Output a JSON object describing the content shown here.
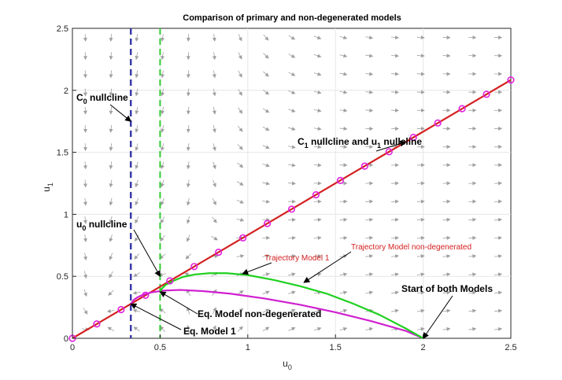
{
  "chart_data": {
    "type": "line",
    "title": "Comparison of primary and non-degenerated models",
    "xlabel": "u",
    "xlabel_sub": "0",
    "ylabel": "u",
    "ylabel_sub": "1",
    "xlim": [
      0,
      2.5
    ],
    "ylim": [
      0,
      2.5
    ],
    "xticks": [
      "0",
      "0.5",
      "1",
      "1.5",
      "2",
      "2.5"
    ],
    "yticks": [
      "0",
      "0.5",
      "1",
      "1.5",
      "2",
      "2.5"
    ],
    "grid": true,
    "nullclines": {
      "c0_x": 0.333,
      "u0_x": 0.5,
      "diagonal_slope": 0.8333
    },
    "series": [
      {
        "name": "C1 nullcline and u1 nullcline",
        "color": "#d42020",
        "marker_color": "#e020e0",
        "x": [
          0,
          0.1389,
          0.2778,
          0.4167,
          0.5556,
          0.6944,
          0.8333,
          0.9722,
          1.1111,
          1.25,
          1.3889,
          1.5278,
          1.6667,
          1.8056,
          1.9444,
          2.0833,
          2.2222,
          2.3611,
          2.5
        ],
        "y": [
          0,
          0.1157,
          0.2315,
          0.3472,
          0.463,
          0.5787,
          0.6944,
          0.8102,
          0.9259,
          1.0417,
          1.1574,
          1.2731,
          1.3889,
          1.5046,
          1.6204,
          1.7361,
          1.8519,
          1.9676,
          2.0833
        ]
      },
      {
        "name": "Trajectory Model 1",
        "color": "#d020d0",
        "x": [
          2.0,
          1.9,
          1.7,
          1.5,
          1.3,
          1.1,
          0.9,
          0.75,
          0.62,
          0.52,
          0.45,
          0.4,
          0.37,
          0.35,
          0.34,
          0.333
        ],
        "y": [
          0.0,
          0.06,
          0.14,
          0.21,
          0.27,
          0.32,
          0.36,
          0.38,
          0.39,
          0.385,
          0.37,
          0.35,
          0.33,
          0.31,
          0.29,
          0.278
        ]
      },
      {
        "name": "Trajectory Model non-degenerated",
        "color": "#20d020",
        "x": [
          2.0,
          1.9,
          1.75,
          1.6,
          1.45,
          1.3,
          1.15,
          1.0,
          0.88,
          0.78,
          0.7,
          0.63,
          0.57,
          0.53,
          0.51,
          0.5
        ],
        "y": [
          0.0,
          0.08,
          0.19,
          0.28,
          0.36,
          0.42,
          0.47,
          0.51,
          0.525,
          0.525,
          0.515,
          0.495,
          0.46,
          0.43,
          0.4,
          0.375
        ]
      }
    ],
    "annotations": [
      {
        "text": "C",
        "sub": "0",
        "rest": " nullcline",
        "x": 0.333,
        "y": 1.75
      },
      {
        "text": "C",
        "sub": "1",
        "rest": " nullcline and u",
        "sub2": "1",
        "rest2": " nullcline",
        "x": 1.9,
        "y": 1.58
      },
      {
        "text": "u",
        "sub": "0",
        "rest": " nullcline",
        "x": 0.5,
        "y": 0.72
      },
      {
        "text": "Trajectory Model 1",
        "x": 1.05,
        "y": 0.5
      },
      {
        "text": "Trajectory Model non-degenerated",
        "x": 1.4,
        "y": 0.44
      },
      {
        "text": "Start of both Models",
        "x": 2.0,
        "y": 0.0
      },
      {
        "text": "Eq. Model non-degenerated",
        "x": 0.5,
        "y": 0.375
      },
      {
        "text": "Eq. Model 1",
        "x": 0.333,
        "y": 0.278
      }
    ]
  }
}
